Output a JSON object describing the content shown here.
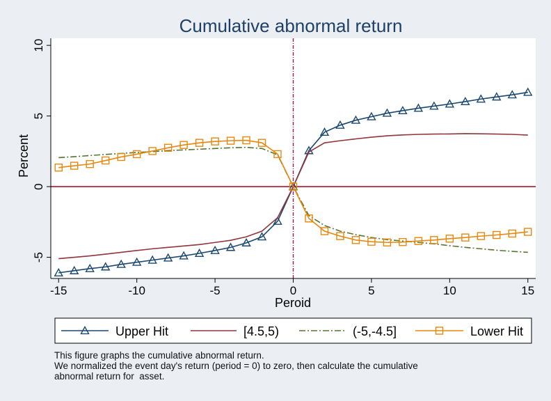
{
  "chart_data": {
    "type": "line",
    "title": "Cumulative abnormal return",
    "xlabel": "Peroid",
    "ylabel": "Percent",
    "xlim": [
      -15.5,
      15.5
    ],
    "ylim": [
      -6.5,
      10.5
    ],
    "xticks": [
      -15,
      -10,
      -5,
      0,
      5,
      10,
      15
    ],
    "xtick_labels": [
      "-15",
      "-10",
      "-5",
      "0",
      "5",
      "10",
      "15"
    ],
    "yticks": [
      -5,
      0,
      5,
      10
    ],
    "ytick_labels": [
      "-5",
      "0",
      "5",
      "10"
    ],
    "grid": false,
    "reference_lines": {
      "vertical_x": 0,
      "horizontal_y": 0
    },
    "legend_position": "bottom",
    "x": [
      -15,
      -14,
      -13,
      -12,
      -11,
      -10,
      -9,
      -8,
      -7,
      -6,
      -5,
      -4,
      -3,
      -2,
      -1,
      0,
      1,
      2,
      3,
      4,
      5,
      6,
      7,
      8,
      9,
      10,
      11,
      12,
      13,
      14,
      15
    ],
    "series": [
      {
        "name": "Upper Hit",
        "color": "#1a476f",
        "style": "solid",
        "marker": "triangle",
        "values": [
          -6.1,
          -5.95,
          -5.8,
          -5.68,
          -5.5,
          -5.35,
          -5.2,
          -5.05,
          -4.9,
          -4.72,
          -4.52,
          -4.3,
          -3.98,
          -3.55,
          -2.45,
          0,
          2.55,
          3.85,
          4.35,
          4.7,
          4.95,
          5.2,
          5.38,
          5.55,
          5.7,
          5.85,
          6.02,
          6.2,
          6.35,
          6.5,
          6.68
        ]
      },
      {
        "name": "[4.5,5)",
        "color": "#90353b",
        "style": "solid",
        "marker": "none",
        "values": [
          -5.1,
          -5.0,
          -4.9,
          -4.78,
          -4.65,
          -4.52,
          -4.4,
          -4.3,
          -4.2,
          -4.1,
          -3.95,
          -3.8,
          -3.55,
          -3.15,
          -2.2,
          0,
          2.45,
          3.1,
          3.25,
          3.38,
          3.5,
          3.6,
          3.66,
          3.7,
          3.72,
          3.73,
          3.75,
          3.74,
          3.72,
          3.7,
          3.65
        ]
      },
      {
        "name": "(-5,-4.5]",
        "color": "#55752f",
        "style": "dashdot",
        "marker": "none",
        "values": [
          2.05,
          2.12,
          2.2,
          2.28,
          2.35,
          2.42,
          2.48,
          2.55,
          2.6,
          2.65,
          2.7,
          2.75,
          2.78,
          2.7,
          2.25,
          0,
          -2.05,
          -2.75,
          -3.15,
          -3.4,
          -3.6,
          -3.75,
          -3.85,
          -3.95,
          -4.05,
          -4.18,
          -4.3,
          -4.4,
          -4.5,
          -4.58,
          -4.65
        ]
      },
      {
        "name": "Lower Hit",
        "color": "#e8870c",
        "style": "solid",
        "marker": "square",
        "values": [
          1.35,
          1.48,
          1.6,
          1.85,
          2.1,
          2.3,
          2.52,
          2.75,
          2.95,
          3.1,
          3.2,
          3.25,
          3.28,
          3.1,
          2.3,
          0,
          -2.25,
          -3.15,
          -3.5,
          -3.78,
          -3.9,
          -3.95,
          -3.92,
          -3.85,
          -3.78,
          -3.68,
          -3.6,
          -3.5,
          -3.42,
          -3.32,
          -3.2
        ]
      }
    ]
  },
  "note": {
    "line1": "This figure graphs the cumulative abnormal return.",
    "line2": "We normalized the event day's return (period = 0) to zero, then calculate the cumulative",
    "line3": "abnormal return for  asset."
  }
}
